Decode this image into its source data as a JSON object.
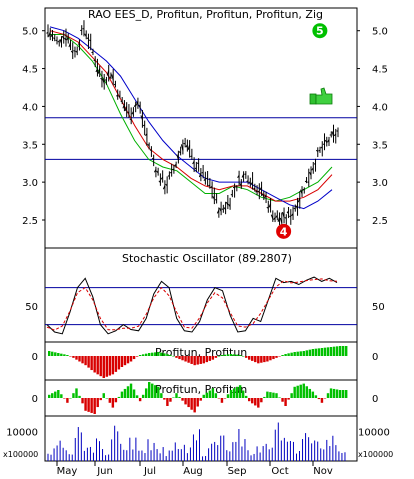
{
  "colors": {
    "background": "#ffffff",
    "frame": "#000000",
    "grid": "#808080",
    "price": "#000000",
    "ma_red": "#d80000",
    "ma_green": "#00b000",
    "ma_blue": "#0000c8",
    "stoch_k": "#000000",
    "stoch_d": "#d80000",
    "hline": "#0000a0",
    "hist_pos": "#00c000",
    "hist_neg": "#d80000",
    "volume": "#0000c0"
  },
  "chart_data": [
    {
      "type": "line",
      "title": "RAO EES_D, Profitun, Profitun, Profitun, Zig",
      "months": [
        "May",
        "Jun",
        "Jul",
        "Aug",
        "Sep",
        "Oct",
        "Nov"
      ],
      "ylim": [
        2.13,
        5.3
      ],
      "yticks": [
        "5.0",
        "4.5",
        "4.0",
        "3.5",
        "3.0",
        "2.5"
      ],
      "hlines": [
        3.85,
        3.3
      ],
      "price_points": [
        5.0,
        4.85,
        4.95,
        4.7,
        5.05,
        4.7,
        4.35,
        4.45,
        4.1,
        3.9,
        4.05,
        3.55,
        3.15,
        2.95,
        3.2,
        3.55,
        3.3,
        3.1,
        2.95,
        2.6,
        2.75,
        3.0,
        3.1,
        2.95,
        2.8,
        2.55,
        2.5,
        2.6,
        2.85,
        3.15,
        3.4,
        3.55,
        3.65
      ],
      "series": [
        {
          "name": "",
          "values": [
            4.95,
            4.95,
            4.8,
            4.6,
            4.3,
            3.9,
            3.55,
            3.3,
            3.2,
            3.15,
            3.0,
            2.85,
            2.85,
            2.95,
            2.9,
            2.8,
            2.75,
            2.8,
            2.9,
            3.0,
            3.2
          ]
        },
        {
          "name": "",
          "values": [
            5.0,
            4.95,
            4.85,
            4.65,
            4.45,
            4.1,
            3.75,
            3.45,
            3.3,
            3.2,
            3.05,
            2.95,
            2.9,
            2.95,
            2.95,
            2.85,
            2.75,
            2.75,
            2.8,
            2.9,
            3.1
          ]
        },
        {
          "name": "",
          "values": [
            5.05,
            5.0,
            4.9,
            4.75,
            4.6,
            4.4,
            4.1,
            3.8,
            3.55,
            3.35,
            3.2,
            3.05,
            3.0,
            3.0,
            3.0,
            2.9,
            2.8,
            2.7,
            2.65,
            2.75,
            2.9
          ]
        }
      ],
      "markers": [
        {
          "label": "4",
          "x_index": 26,
          "y": 2.35,
          "color": "#e00000"
        },
        {
          "label": "5",
          "x_index": 30,
          "y": 5.0,
          "color": "#00c000"
        }
      ]
    },
    {
      "type": "line",
      "title": "Stochastic Oscillator (89.2807)",
      "ylim": [
        -5,
        115
      ],
      "yticks": [
        "50"
      ],
      "hlines": [
        80,
        20
      ],
      "series": [
        {
          "name": "",
          "values": [
            20,
            8,
            5,
            40,
            80,
            95,
            65,
            20,
            5,
            10,
            20,
            12,
            10,
            30,
            70,
            90,
            80,
            30,
            10,
            8,
            25,
            60,
            80,
            75,
            35,
            8,
            10,
            30,
            25,
            60,
            95,
            88,
            90,
            85,
            92,
            97,
            90,
            95,
            88
          ]
        }
      ]
    },
    {
      "type": "bar",
      "title": "Profitun, Profitun",
      "yticks": [
        "0"
      ],
      "values": [
        0.5,
        0.3,
        0.1,
        -0.2,
        -0.5,
        -0.9,
        -1.2,
        -1.0,
        -0.6,
        -0.3,
        0.1,
        0.3,
        0.4,
        0.2,
        -0.1,
        -0.3,
        -0.5,
        -0.4,
        -0.2,
        0.1,
        0.2,
        0.1,
        -0.2,
        -0.4,
        -0.3,
        -0.1,
        0.2,
        0.4,
        0.5,
        0.7,
        0.8,
        0.9,
        1.0
      ]
    },
    {
      "type": "bar",
      "title": "Profitun, Profitun",
      "yticks": [
        "0"
      ],
      "values": [
        0.2,
        0.5,
        -0.3,
        0.6,
        -0.8,
        -1.0,
        0.3,
        -0.6,
        0.4,
        0.9,
        -0.2,
        1.0,
        0.7,
        -0.5,
        0.3,
        -0.4,
        -0.9,
        0.2,
        0.6,
        -0.3,
        0.5,
        0.8,
        -0.2,
        -0.6,
        0.4,
        0.3,
        -0.5,
        0.7,
        0.9,
        0.4,
        -0.3,
        0.6,
        0.5
      ]
    },
    {
      "type": "bar",
      "title": "",
      "yticks": [
        "10000"
      ],
      "unit_label": "x100000",
      "values": [
        3000,
        6000,
        2500,
        8000,
        4000,
        5500,
        3000,
        9000,
        4500,
        6500,
        3500,
        7000,
        5000,
        2500,
        6000,
        4000,
        8500,
        3000,
        5000,
        6000,
        4500,
        7500,
        3500,
        5500,
        4000,
        9500,
        6000,
        4500,
        8000,
        5000,
        6500,
        7000,
        4000
      ]
    }
  ]
}
